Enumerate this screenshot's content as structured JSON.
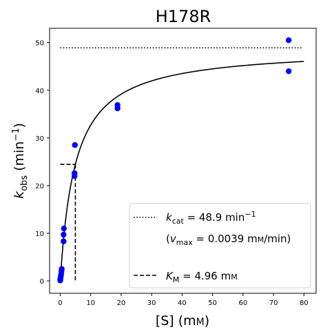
{
  "chart_data": {
    "type": "scatter",
    "title": "H178R",
    "xlabel": "[S] (mм)",
    "ylabel": "k_obs (min⁻¹)",
    "xlim": [
      -3.5,
      84
    ],
    "ylim": [
      -2.6,
      53
    ],
    "xticks": [
      0,
      10,
      20,
      30,
      40,
      50,
      60,
      70,
      80
    ],
    "yticks": [
      0,
      10,
      20,
      30,
      40,
      50
    ],
    "points": [
      {
        "x": 0,
        "y": 0.1
      },
      {
        "x": 0,
        "y": 0.3
      },
      {
        "x": 0.1,
        "y": 0.6
      },
      {
        "x": 0.2,
        "y": 1.0
      },
      {
        "x": 0.3,
        "y": 1.4
      },
      {
        "x": 0.4,
        "y": 2.0
      },
      {
        "x": 0.5,
        "y": 2.5
      },
      {
        "x": 1.1,
        "y": 8.3
      },
      {
        "x": 1.1,
        "y": 9.7
      },
      {
        "x": 1.2,
        "y": 11.0
      },
      {
        "x": 4.7,
        "y": 22.0
      },
      {
        "x": 4.7,
        "y": 22.6
      },
      {
        "x": 4.8,
        "y": 28.5
      },
      {
        "x": 18.8,
        "y": 36.2
      },
      {
        "x": 18.8,
        "y": 36.9
      },
      {
        "x": 75.0,
        "y": 44.0
      },
      {
        "x": 75.0,
        "y": 50.5
      }
    ],
    "fit": {
      "kcat": 48.9,
      "km": 4.96,
      "x_start": 0,
      "x_end": 80
    },
    "kcat_line": {
      "y": 48.9,
      "x_start": 0,
      "x_end": 79.5
    },
    "km_marker": {
      "x": 4.96,
      "y": 24.45,
      "x_start": 0
    },
    "point_color": "#0000ff",
    "line_color": "#000000",
    "legend": {
      "position": "lower-right",
      "kcat_label": "k_cat = 48.9 min⁻¹",
      "vmax_label": "(v_max = 0.0039 mм/min)",
      "km_label": "K_M = 4.96 mм"
    }
  }
}
